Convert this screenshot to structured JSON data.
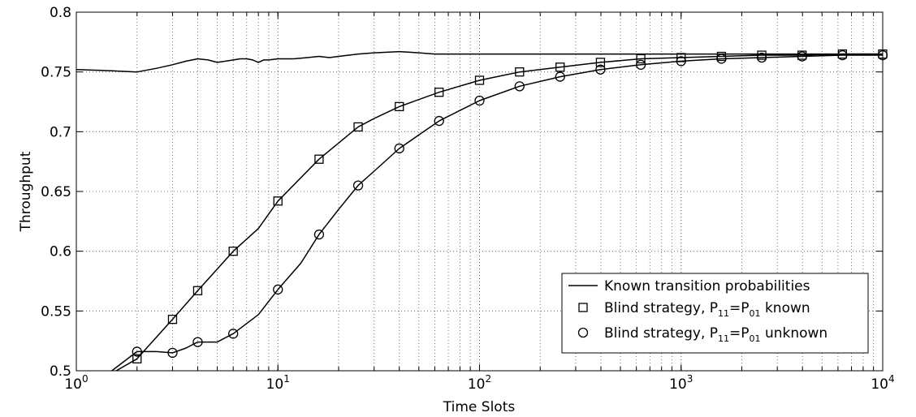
{
  "chart_data": {
    "type": "line",
    "xscale": "log",
    "xlim": [
      1,
      10000
    ],
    "ylim": [
      0.5,
      0.8
    ],
    "xlabel": "Time Slots",
    "ylabel": "Throughput",
    "grid": true,
    "legend_position": "bottom-right",
    "x_ticks": [
      {
        "value": 1,
        "base": "10",
        "exp": "0"
      },
      {
        "value": 10,
        "base": "10",
        "exp": "1"
      },
      {
        "value": 100,
        "base": "10",
        "exp": "2"
      },
      {
        "value": 1000,
        "base": "10",
        "exp": "3"
      },
      {
        "value": 10000,
        "base": "10",
        "exp": "4"
      }
    ],
    "y_ticks": [
      {
        "value": 0.5,
        "label": "0.5"
      },
      {
        "value": 0.55,
        "label": "0.55"
      },
      {
        "value": 0.6,
        "label": "0.6"
      },
      {
        "value": 0.65,
        "label": "0.65"
      },
      {
        "value": 0.7,
        "label": "0.7"
      },
      {
        "value": 0.75,
        "label": "0.75"
      },
      {
        "value": 0.8,
        "label": "0.8"
      }
    ],
    "series": [
      {
        "name": "Known transition probabilities",
        "marker": "none",
        "x": [
          1,
          1.5,
          2,
          2.5,
          3,
          3.5,
          4,
          4.5,
          5,
          5.5,
          6,
          6.5,
          7,
          7.5,
          8,
          8.5,
          9,
          10,
          12,
          14,
          16,
          18,
          20,
          25,
          30,
          40,
          50,
          60,
          80,
          100,
          200,
          500,
          1000,
          2000,
          5000,
          10000
        ],
        "y": [
          0.752,
          0.751,
          0.75,
          0.753,
          0.756,
          0.759,
          0.761,
          0.76,
          0.758,
          0.759,
          0.76,
          0.761,
          0.761,
          0.76,
          0.758,
          0.76,
          0.76,
          0.761,
          0.761,
          0.762,
          0.763,
          0.762,
          0.763,
          0.765,
          0.766,
          0.767,
          0.766,
          0.765,
          0.765,
          0.765,
          0.765,
          0.765,
          0.765,
          0.765,
          0.765,
          0.765
        ]
      },
      {
        "name_prefix": "Blind strategy, P",
        "name_sub1": "11",
        "name_mid": "=P",
        "name_sub2": "01",
        "name_suffix": " known",
        "marker": "square",
        "x": [
          1.4,
          2,
          3,
          4,
          6,
          8,
          10,
          16,
          25,
          30,
          40,
          63,
          100,
          158,
          251,
          398,
          631,
          1000,
          1585,
          2512,
          3981,
          6310,
          10000
        ],
        "y": [
          0.495,
          0.51,
          0.543,
          0.567,
          0.6,
          0.619,
          0.642,
          0.677,
          0.704,
          0.711,
          0.721,
          0.733,
          0.743,
          0.75,
          0.754,
          0.758,
          0.761,
          0.762,
          0.763,
          0.764,
          0.764,
          0.765,
          0.765
        ],
        "marker_x": [
          2,
          3,
          4,
          6,
          10,
          16,
          25,
          40,
          63,
          100,
          158,
          251,
          398,
          631,
          1000,
          1585,
          2512,
          3981,
          6310,
          10000
        ],
        "marker_y": [
          0.51,
          0.543,
          0.567,
          0.6,
          0.642,
          0.677,
          0.704,
          0.721,
          0.733,
          0.743,
          0.75,
          0.754,
          0.758,
          0.761,
          0.762,
          0.763,
          0.764,
          0.764,
          0.765,
          0.765
        ]
      },
      {
        "name_prefix": "Blind strategy, P",
        "name_sub1": "11",
        "name_mid": "=P",
        "name_sub2": "01",
        "name_suffix": " unknown",
        "marker": "circle",
        "x": [
          1.5,
          2,
          2.5,
          3,
          3.5,
          4,
          5,
          6,
          8,
          10,
          13,
          16,
          20,
          25,
          30,
          40,
          63,
          100,
          158,
          251,
          398,
          631,
          1000,
          1585,
          2512,
          3981,
          6310,
          10000
        ],
        "y": [
          0.5,
          0.516,
          0.516,
          0.515,
          0.519,
          0.524,
          0.524,
          0.531,
          0.547,
          0.568,
          0.59,
          0.614,
          0.635,
          0.655,
          0.667,
          0.686,
          0.709,
          0.726,
          0.738,
          0.746,
          0.752,
          0.756,
          0.759,
          0.761,
          0.762,
          0.763,
          0.764,
          0.764
        ],
        "marker_x": [
          2,
          3,
          4,
          6,
          10,
          16,
          25,
          40,
          63,
          100,
          158,
          251,
          398,
          631,
          1000,
          1585,
          2512,
          3981,
          6310,
          10000
        ],
        "marker_y": [
          0.516,
          0.515,
          0.524,
          0.531,
          0.568,
          0.614,
          0.655,
          0.686,
          0.709,
          0.726,
          0.738,
          0.746,
          0.752,
          0.756,
          0.759,
          0.761,
          0.762,
          0.763,
          0.764,
          0.764
        ]
      }
    ]
  }
}
